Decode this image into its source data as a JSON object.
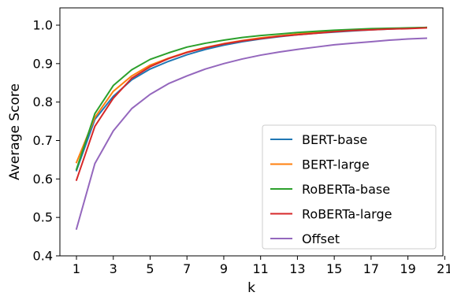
{
  "chart_data": {
    "type": "line",
    "title": "",
    "xlabel": "k",
    "ylabel": "Average Score",
    "xlim": [
      0.1,
      20.9
    ],
    "ylim": [
      0.4,
      1.045
    ],
    "xticks": [
      1,
      3,
      5,
      7,
      9,
      11,
      13,
      15,
      17,
      19,
      21
    ],
    "yticks": [
      0.4,
      0.5,
      0.6,
      0.7,
      0.8,
      0.9,
      1.0
    ],
    "ytick_labels": [
      "0.4",
      "0.5",
      "0.6",
      "0.7",
      "0.8",
      "0.9",
      "1.0"
    ],
    "grid": false,
    "legend_position": "lower-right",
    "x": [
      1,
      2,
      3,
      4,
      5,
      6,
      7,
      8,
      9,
      10,
      11,
      12,
      13,
      14,
      15,
      16,
      17,
      18,
      19,
      20
    ],
    "series": [
      {
        "name": "BERT-base",
        "color": "#1f77b4",
        "values": [
          0.622,
          0.755,
          0.815,
          0.858,
          0.886,
          0.906,
          0.923,
          0.937,
          0.948,
          0.957,
          0.964,
          0.97,
          0.975,
          0.979,
          0.982,
          0.985,
          0.988,
          0.99,
          0.992,
          0.994
        ]
      },
      {
        "name": "BERT-large",
        "color": "#ff7f0e",
        "values": [
          0.643,
          0.76,
          0.828,
          0.868,
          0.896,
          0.914,
          0.93,
          0.942,
          0.952,
          0.96,
          0.967,
          0.972,
          0.977,
          0.981,
          0.984,
          0.987,
          0.989,
          0.991,
          0.992,
          0.994
        ]
      },
      {
        "name": "RoBERTa-base",
        "color": "#2ca02c",
        "values": [
          0.625,
          0.77,
          0.843,
          0.884,
          0.911,
          0.928,
          0.943,
          0.953,
          0.961,
          0.968,
          0.973,
          0.977,
          0.981,
          0.984,
          0.987,
          0.989,
          0.991,
          0.992,
          0.993,
          0.994
        ]
      },
      {
        "name": "RoBERTa-large",
        "color": "#d62728",
        "values": [
          0.597,
          0.737,
          0.81,
          0.862,
          0.892,
          0.913,
          0.929,
          0.941,
          0.951,
          0.959,
          0.965,
          0.971,
          0.975,
          0.979,
          0.983,
          0.986,
          0.988,
          0.99,
          0.991,
          0.993
        ]
      },
      {
        "name": "Offset",
        "color": "#9467bd",
        "values": [
          0.47,
          0.64,
          0.725,
          0.783,
          0.82,
          0.848,
          0.868,
          0.886,
          0.9,
          0.912,
          0.922,
          0.93,
          0.937,
          0.943,
          0.949,
          0.953,
          0.957,
          0.961,
          0.964,
          0.966
        ]
      }
    ]
  }
}
